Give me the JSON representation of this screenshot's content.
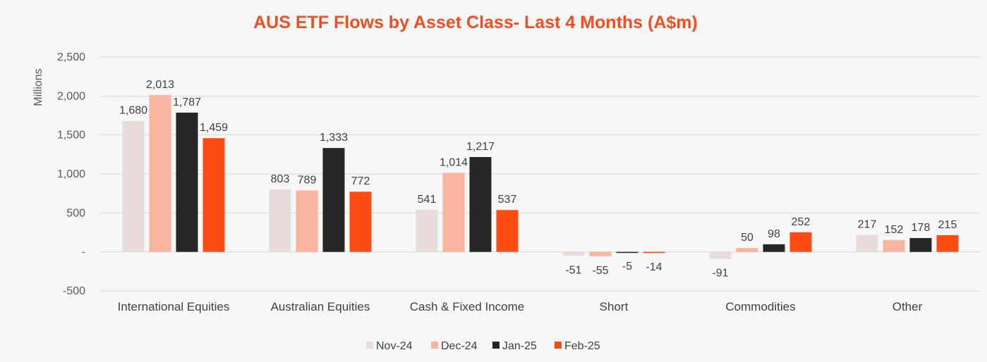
{
  "chart_data": {
    "type": "bar",
    "title": "AUS ETF Flows by Asset Class- Last 4 Months (A$m)",
    "ylabel": "Millions",
    "xlabel": "",
    "ylim": [
      -500,
      2500
    ],
    "yticks": [
      2500,
      2000,
      1500,
      1000,
      500,
      0,
      -500
    ],
    "ytick_labels": [
      "2,500",
      "2,000",
      "1,500",
      "1,000",
      "500",
      "-",
      "-500"
    ],
    "grid": true,
    "legend_position": "bottom",
    "categories": [
      "International Equities",
      "Australian Equities",
      "Cash & Fixed Income",
      "Short",
      "Commodities",
      "Other"
    ],
    "series": [
      {
        "name": "Nov-24",
        "color": "#e8dcda",
        "values": [
          1680,
          803,
          541,
          -51,
          -91,
          217
        ],
        "labels": [
          "1,680",
          "803",
          "541",
          "-51",
          "-91",
          "217"
        ]
      },
      {
        "name": "Dec-24",
        "color": "#f9b5a0",
        "values": [
          2013,
          789,
          1014,
          -55,
          50,
          152
        ],
        "labels": [
          "2,013",
          "789",
          "1,014",
          "-55",
          "50",
          "152"
        ]
      },
      {
        "name": "Jan-25",
        "color": "#262626",
        "values": [
          1787,
          1333,
          1217,
          -5,
          98,
          178
        ],
        "labels": [
          "1,787",
          "1,333",
          "1,217",
          "-5",
          "98",
          "178"
        ]
      },
      {
        "name": "Feb-25",
        "color": "#fc4c14",
        "values": [
          1459,
          772,
          537,
          -14,
          252,
          215
        ],
        "labels": [
          "1,459",
          "772",
          "537",
          "-14",
          "252",
          "215"
        ]
      }
    ]
  }
}
